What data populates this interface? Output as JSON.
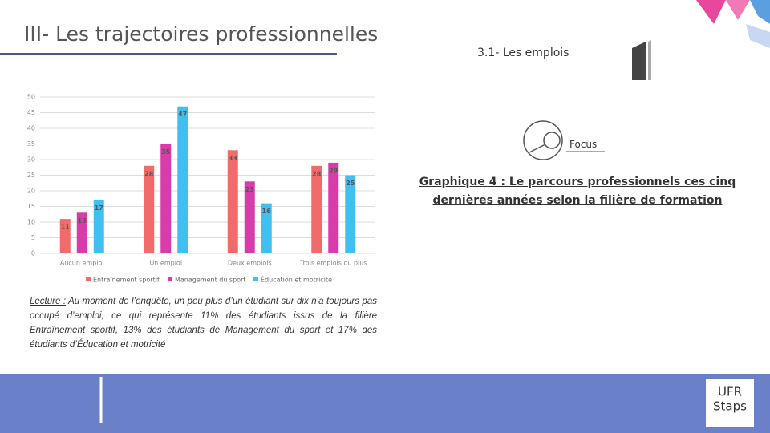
{
  "slide_title": "III- Les trajectoires professionnelles",
  "section": "3.1- Les emplois",
  "focus": "Focus",
  "graph_title": [
    "Graphique 4 : Le parcours professionnels ces cinq",
    "dernières années selon la filière de formation"
  ],
  "lecture": {
    "label": "Lecture :",
    "text": "Au moment de l’enquête, un peu plus d’un étudiant sur dix n’a toujours pas occupé d’emploi, ce qui représente 11% des étudiants issus de la filière Entraînement sportif, 13% des étudiants de Management du sport et 17% des étudiants d’Éducation et motricité"
  },
  "logo": [
    "UFR",
    "Staps"
  ],
  "chart_data": {
    "type": "bar",
    "categories": [
      "Aucun emploi",
      "Un emploi",
      "Deux emplois",
      "Trois emplois ou plus"
    ],
    "series": [
      {
        "name": "Entraînement sportif",
        "color": "#f26b6b",
        "values": [
          11,
          28,
          33,
          28
        ]
      },
      {
        "name": "Management du sport",
        "color": "#d93caa",
        "values": [
          13,
          35,
          23,
          29
        ]
      },
      {
        "name": "Éducation et motricité",
        "color": "#3fc0f0",
        "values": [
          17,
          47,
          16,
          25
        ]
      }
    ],
    "ylim": [
      0,
      50
    ],
    "yticks": [
      0,
      5,
      10,
      15,
      20,
      25,
      30,
      35,
      40,
      45,
      50
    ],
    "grid": true,
    "legend": "bottom"
  }
}
